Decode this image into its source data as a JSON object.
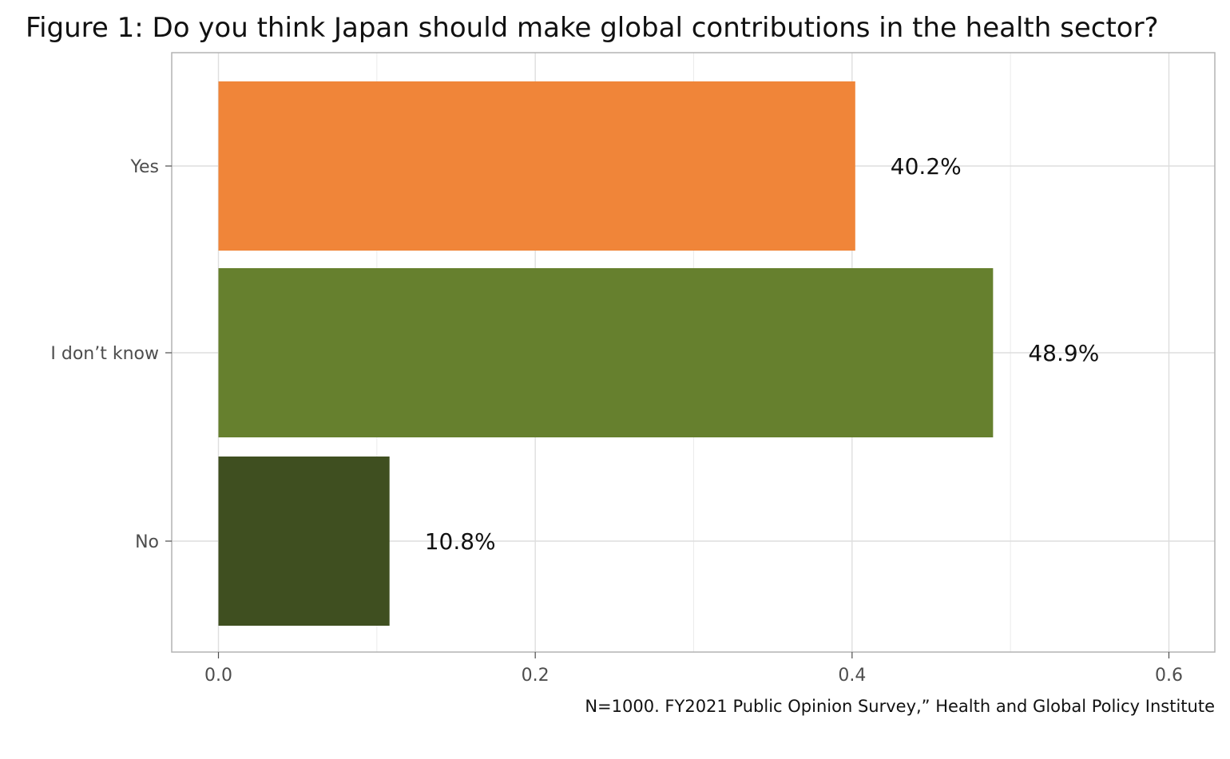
{
  "chart_data": {
    "type": "bar",
    "orientation": "horizontal",
    "title": "Figure 1: Do you think Japan should make global contributions in the health sector?",
    "categories": [
      "Yes",
      "I don’t know",
      "No"
    ],
    "values": [
      0.402,
      0.489,
      0.108
    ],
    "data_labels": [
      "40.2%",
      "48.9%",
      "10.8%"
    ],
    "colors": [
      "#f08539",
      "#66802e",
      "#3f4f20"
    ],
    "xlim": [
      -0.03,
      0.63
    ],
    "x_ticks": [
      0.0,
      0.2,
      0.4,
      0.6
    ],
    "x_tick_labels": [
      "0.0",
      "0.2",
      "0.4",
      "0.6"
    ],
    "xlabel": "",
    "ylabel": "",
    "grid": true,
    "caption": "N=1000. FY2021 Public Opinion Survey,” Health and Global Policy Institute"
  }
}
